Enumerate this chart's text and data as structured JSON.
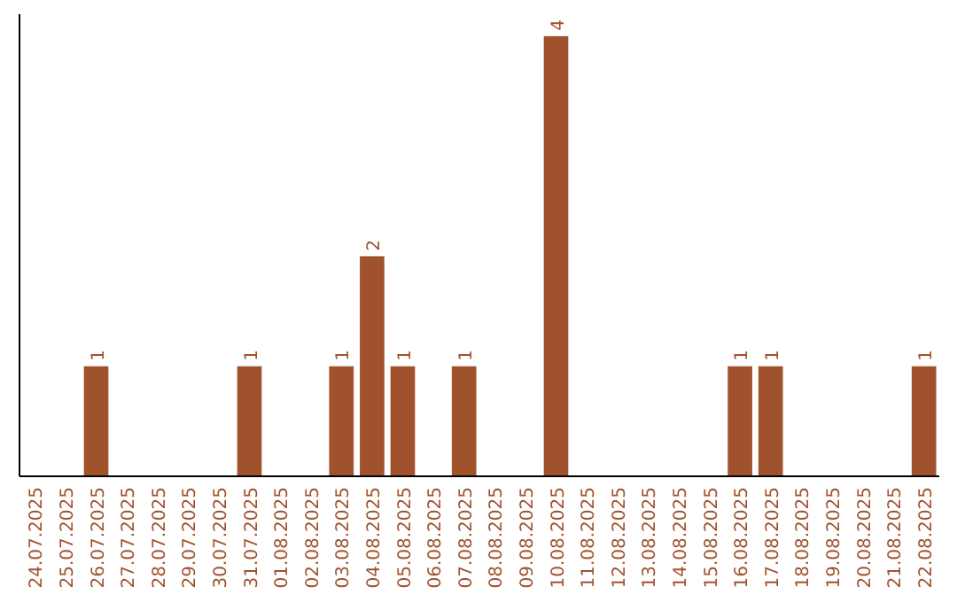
{
  "chart_data": {
    "type": "bar",
    "categories": [
      "24.07.2025",
      "25.07.2025",
      "26.07.2025",
      "27.07.2025",
      "28.07.2025",
      "29.07.2025",
      "30.07.2025",
      "31.07.2025",
      "01.08.2025",
      "02.08.2025",
      "03.08.2025",
      "04.08.2025",
      "05.08.2025",
      "06.08.2025",
      "07.08.2025",
      "08.08.2025",
      "09.08.2025",
      "10.08.2025",
      "11.08.2025",
      "12.08.2025",
      "13.08.2025",
      "14.08.2025",
      "15.08.2025",
      "16.08.2025",
      "17.08.2025",
      "18.08.2025",
      "19.08.2025",
      "20.08.2025",
      "21.08.2025",
      "22.08.2025"
    ],
    "values": [
      0,
      0,
      1,
      0,
      0,
      0,
      0,
      1,
      0,
      0,
      1,
      2,
      1,
      0,
      1,
      0,
      0,
      4,
      0,
      0,
      0,
      0,
      0,
      1,
      1,
      0,
      0,
      0,
      0,
      1
    ],
    "value_labels": [
      null,
      null,
      "1",
      null,
      null,
      null,
      null,
      "1",
      null,
      null,
      "1",
      "2",
      "1",
      null,
      "1",
      null,
      null,
      "4",
      null,
      null,
      null,
      null,
      null,
      "1",
      "1",
      null,
      null,
      null,
      null,
      "1"
    ],
    "color": "#a0522d"
  }
}
